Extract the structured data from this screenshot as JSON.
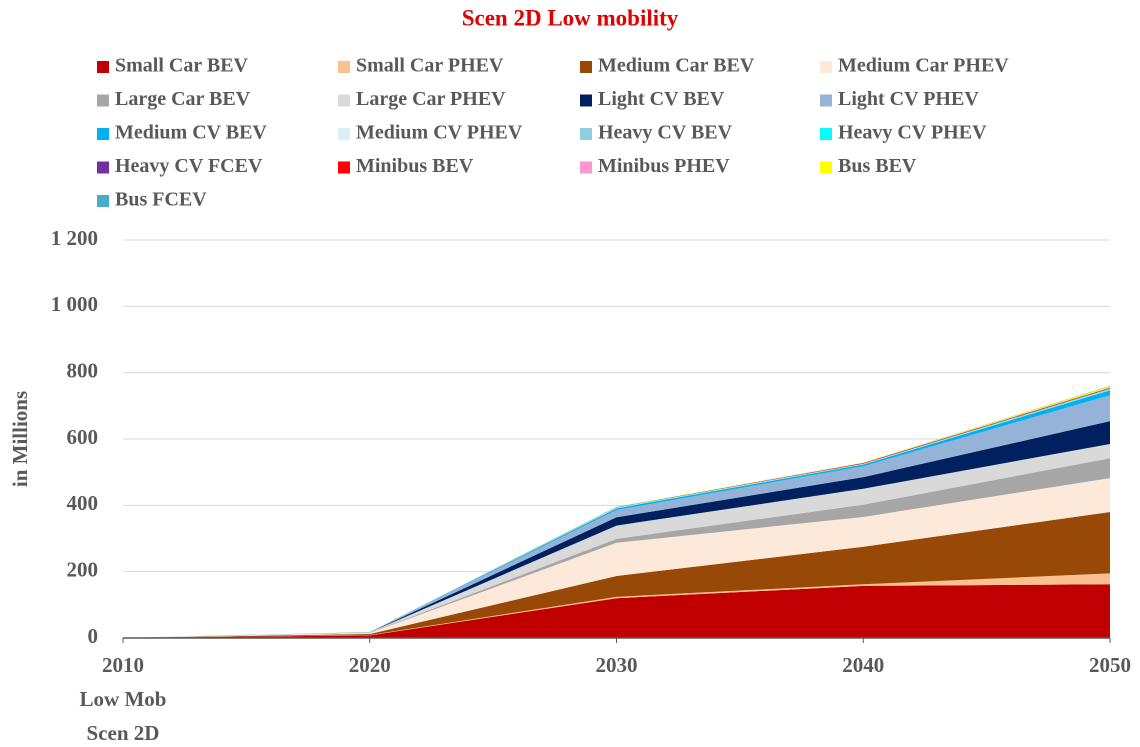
{
  "chart_data": {
    "type": "stacked_area",
    "title": "Scen 2D Low mobility",
    "ylabel": "in Millions",
    "xlabel_lines": [
      "Low Mob",
      "Scen 2D"
    ],
    "x": [
      2010,
      2020,
      2030,
      2040,
      2050
    ],
    "xlim": [
      2010,
      2050
    ],
    "xticks": [
      2010,
      2020,
      2030,
      2040,
      2050
    ],
    "ylim": [
      0,
      1200
    ],
    "yticks": [
      0,
      200,
      400,
      600,
      800,
      {
        "value": 1000,
        "label": "1 000"
      },
      {
        "value": 1200,
        "label": "1 200"
      }
    ],
    "grid": true,
    "legend": "top",
    "series": [
      {
        "name": "Small Car BEV",
        "color": "#c00000",
        "values": [
          0.3,
          8,
          120,
          157,
          162
        ]
      },
      {
        "name": "Small Car PHEV",
        "color": "#fac090",
        "values": [
          0.1,
          1,
          4,
          5,
          33
        ]
      },
      {
        "name": "Medium Car BEV",
        "color": "#984807",
        "values": [
          0.1,
          3,
          63,
          113,
          185
        ]
      },
      {
        "name": "Medium Car PHEV",
        "color": "#fde9d9",
        "values": [
          0.1,
          3,
          100,
          90,
          102
        ]
      },
      {
        "name": "Large Car BEV",
        "color": "#a6a6a6",
        "values": [
          0,
          1,
          12,
          37,
          60
        ]
      },
      {
        "name": "Large Car PHEV",
        "color": "#d9d9d9",
        "values": [
          0,
          1,
          40,
          48,
          43
        ]
      },
      {
        "name": "Light CV BEV",
        "color": "#002060",
        "values": [
          0,
          0.5,
          25,
          35,
          69
        ]
      },
      {
        "name": "Light CV PHEV",
        "color": "#95b3d7",
        "values": [
          0,
          0.5,
          22,
          33,
          78
        ]
      },
      {
        "name": "Medium CV BEV",
        "color": "#00b0f0",
        "values": [
          0,
          0.2,
          5,
          5,
          15
        ]
      },
      {
        "name": "Medium CV PHEV",
        "color": "#daeef3",
        "values": [
          0,
          0,
          1,
          1,
          1
        ]
      },
      {
        "name": "Heavy CV BEV",
        "color": "#92cddc",
        "values": [
          0,
          0,
          1,
          1,
          2
        ]
      },
      {
        "name": "Heavy CV PHEV",
        "color": "#00ffff",
        "values": [
          0,
          0,
          1,
          0.5,
          2
        ]
      },
      {
        "name": "Heavy CV FCEV",
        "color": "#7030a0",
        "values": [
          0,
          0,
          0.2,
          0.2,
          0.5
        ]
      },
      {
        "name": "Minibus BEV",
        "color": "#ff0000",
        "values": [
          0,
          0,
          0.5,
          2,
          2
        ]
      },
      {
        "name": "Minibus PHEV",
        "color": "#ff99cc",
        "values": [
          0,
          0,
          0.2,
          0.3,
          0.5
        ]
      },
      {
        "name": "Bus BEV",
        "color": "#ffff00",
        "values": [
          0,
          0,
          0.5,
          1,
          4
        ]
      },
      {
        "name": "Bus FCEV",
        "color": "#4bacc6",
        "values": [
          0,
          0,
          0.2,
          0.3,
          1
        ]
      }
    ]
  }
}
